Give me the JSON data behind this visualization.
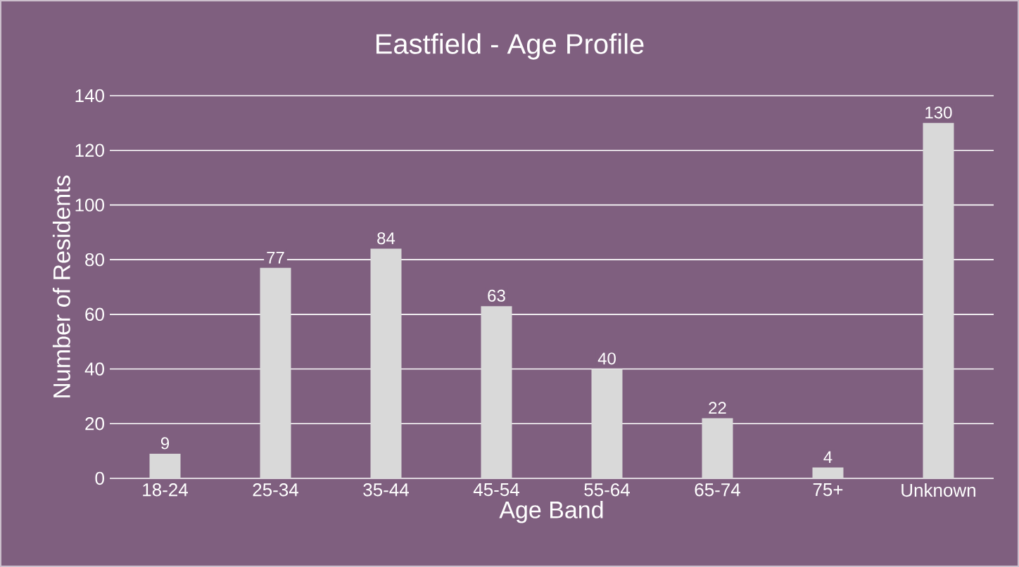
{
  "chart_data": {
    "type": "bar",
    "title": "Eastfield - Age Profile",
    "xlabel": "Age Band",
    "ylabel": "Number of Residents",
    "categories": [
      "18-24",
      "25-34",
      "35-44",
      "45-54",
      "55-64",
      "65-74",
      "75+",
      "Unknown"
    ],
    "values": [
      9,
      77,
      84,
      63,
      40,
      22,
      4,
      130
    ],
    "color": "#d9d9d9",
    "ylim": [
      0,
      140
    ],
    "yticks": [
      0,
      20,
      40,
      60,
      80,
      100,
      120,
      140
    ],
    "grid": "y",
    "data_labels": true
  }
}
